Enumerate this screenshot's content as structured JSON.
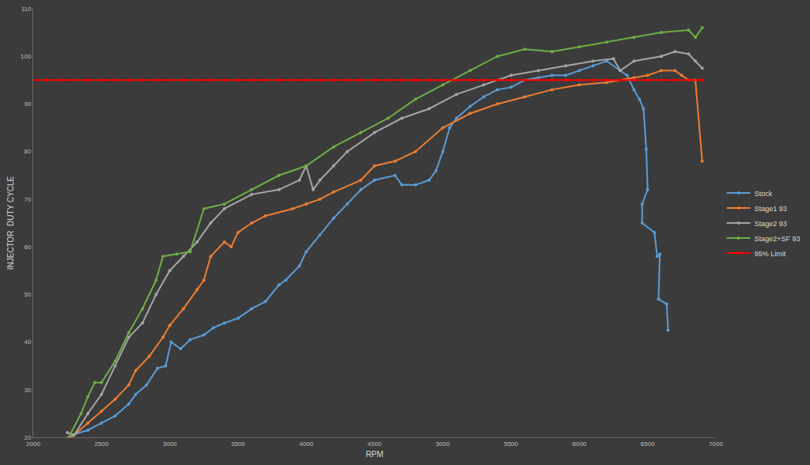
{
  "chart_data": {
    "type": "line",
    "x_label": "RPM",
    "y_label": "INJECTOR  DUTY CYCLE",
    "xlim": [
      2000,
      7000
    ],
    "xticks": [
      2000,
      2500,
      3000,
      3500,
      4000,
      4500,
      5000,
      5500,
      6000,
      6500,
      7000
    ],
    "ylim": [
      20,
      110
    ],
    "yticks": [
      20,
      30,
      40,
      50,
      60,
      70,
      80,
      90,
      100,
      110
    ],
    "grid": false,
    "legend": "right",
    "series": [
      {
        "name": "Stock",
        "color": "#5b9bd5",
        "marker": "circle",
        "line_style": "solid",
        "x": [
          2285,
          2400,
          2500,
          2600,
          2700,
          2750,
          2830,
          2910,
          2970,
          3010,
          3080,
          3150,
          3250,
          3320,
          3400,
          3500,
          3600,
          3700,
          3800,
          3850,
          3950,
          4000,
          4100,
          4200,
          4300,
          4400,
          4500,
          4650,
          4700,
          4800,
          4900,
          4950,
          5000,
          5050,
          5100,
          5200,
          5300,
          5400,
          5500,
          5600,
          5700,
          5800,
          5900,
          6000,
          6100,
          6200,
          6300,
          6350,
          6400,
          6440,
          6470,
          6490,
          6500,
          6460,
          6460,
          6550,
          6570,
          6590,
          6580,
          6640,
          6650
        ],
        "values": [
          20.5,
          21.5,
          23,
          24.5,
          27,
          29,
          31,
          34.5,
          35,
          40,
          38.6,
          40.5,
          41.5,
          43,
          44,
          45,
          47,
          48.5,
          52,
          53,
          56,
          59,
          62.5,
          66,
          69,
          72,
          74,
          75,
          73,
          73,
          74,
          76,
          80,
          85,
          87,
          89.5,
          91.5,
          93,
          93.5,
          95,
          95.5,
          96,
          96,
          97,
          98,
          99,
          97,
          96,
          93,
          91,
          89,
          80.5,
          72,
          69,
          65,
          63,
          58,
          58.5,
          49,
          48,
          42.5
        ]
      },
      {
        "name": "Stage1 93",
        "color": "#ed7d31",
        "marker": "circle",
        "line_style": "solid",
        "x": [
          2280,
          2400,
          2500,
          2600,
          2700,
          2750,
          2850,
          2950,
          3000,
          3100,
          3200,
          3250,
          3300,
          3400,
          3450,
          3500,
          3600,
          3700,
          3900,
          4000,
          4100,
          4200,
          4400,
          4500,
          4650,
          4800,
          5000,
          5200,
          5400,
          5600,
          5800,
          6000,
          6200,
          6400,
          6500,
          6600,
          6700,
          6750,
          6800,
          6850,
          6900
        ],
        "values": [
          20,
          23,
          25.5,
          28,
          31,
          34,
          37,
          41,
          43.5,
          47,
          51,
          53,
          58,
          61,
          60,
          63,
          65,
          66.5,
          68,
          69,
          70,
          71.5,
          74,
          77,
          78,
          80,
          85,
          88,
          90,
          91.5,
          93,
          94,
          94.5,
          95.5,
          96,
          97,
          97,
          96,
          95,
          95,
          78
        ]
      },
      {
        "name": "Stage2 93",
        "color": "#a5a5a5",
        "marker": "circle",
        "line_style": "solid",
        "x": [
          2250,
          2300,
          2400,
          2500,
          2600,
          2700,
          2800,
          2900,
          3000,
          3100,
          3200,
          3300,
          3400,
          3600,
          3800,
          3950,
          4000,
          4050,
          4100,
          4200,
          4300,
          4500,
          4700,
          4900,
          5100,
          5300,
          5500,
          5700,
          5900,
          6100,
          6250,
          6300,
          6400,
          6600,
          6700,
          6800,
          6850,
          6900
        ],
        "values": [
          21,
          20.5,
          25,
          29,
          35,
          41,
          44,
          50,
          55,
          58,
          61,
          65,
          68,
          71,
          72,
          74,
          77,
          72,
          74,
          77,
          80,
          84,
          87,
          89,
          92,
          94,
          96,
          97,
          98,
          99,
          99.5,
          97,
          99,
          100,
          101,
          100.5,
          99,
          97.5
        ]
      },
      {
        "name": "Stage2+SF 93",
        "color": "#70ad47",
        "marker": "circle",
        "line_style": "solid",
        "x": [
          2260,
          2350,
          2400,
          2450,
          2500,
          2600,
          2700,
          2800,
          2900,
          2950,
          3050,
          3150,
          3250,
          3400,
          3600,
          3800,
          4000,
          4200,
          4400,
          4600,
          4800,
          5000,
          5200,
          5400,
          5600,
          5800,
          6000,
          6200,
          6400,
          6600,
          6800,
          6850,
          6900
        ],
        "values": [
          20,
          25,
          28.5,
          31.5,
          31.5,
          36,
          42,
          47,
          53,
          58,
          58.5,
          59,
          68,
          69,
          72,
          75,
          77,
          81,
          84,
          87,
          91,
          94,
          97,
          100,
          101.5,
          101,
          102,
          103,
          104,
          105,
          105.5,
          104,
          106
        ]
      },
      {
        "name": "95% Limit",
        "color": "#ff0000",
        "marker": "circle",
        "line_style": "solid",
        "x": [
          2000,
          2100,
          2200,
          2300,
          2400,
          2500,
          2600,
          2700,
          2800,
          2900,
          3000,
          3100,
          3200,
          3300,
          3400,
          3500,
          3600,
          3700,
          3800,
          3900,
          4000,
          4100,
          4200,
          4300,
          4400,
          4500,
          4600,
          4700,
          4800,
          4900,
          5000,
          5100,
          5200,
          5300,
          5400,
          5500,
          5600,
          5700,
          5800,
          5900,
          6000,
          6100,
          6200,
          6300,
          6400,
          6500,
          6600,
          6700,
          6800,
          6900
        ],
        "values": [
          95,
          95,
          95,
          95,
          95,
          95,
          95,
          95,
          95,
          95,
          95,
          95,
          95,
          95,
          95,
          95,
          95,
          95,
          95,
          95,
          95,
          95,
          95,
          95,
          95,
          95,
          95,
          95,
          95,
          95,
          95,
          95,
          95,
          95,
          95,
          95,
          95,
          95,
          95,
          95,
          95,
          95,
          95,
          95,
          95,
          95,
          95,
          95,
          95,
          95
        ]
      }
    ]
  }
}
